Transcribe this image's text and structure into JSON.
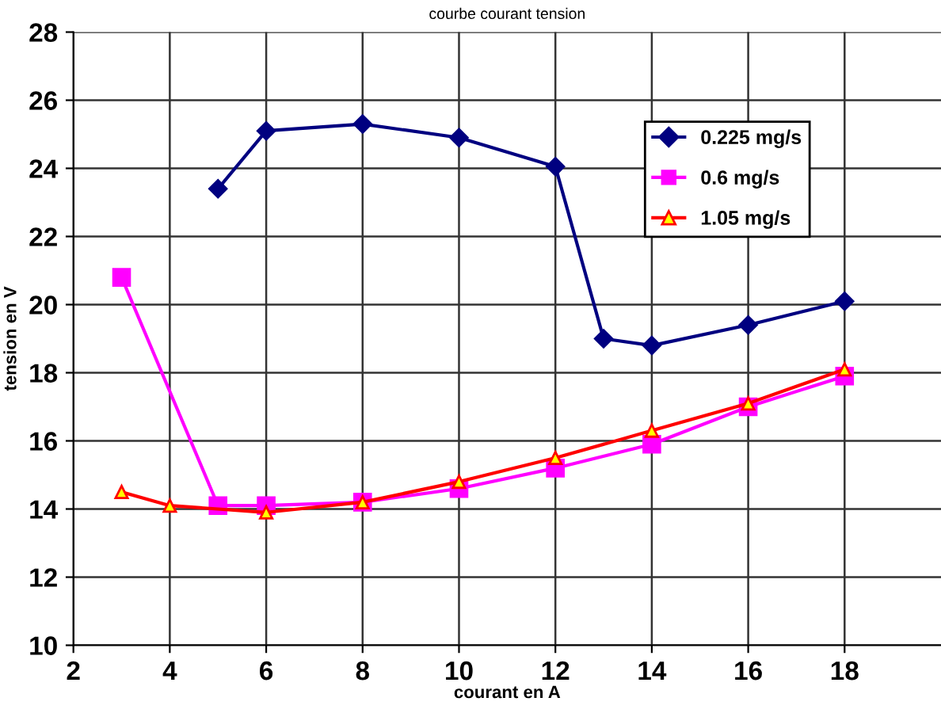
{
  "chart_data": {
    "type": "line",
    "title": "courbe courant tension",
    "xlabel": "courant en A",
    "ylabel": "tension en V",
    "xlim": [
      2,
      20
    ],
    "xticks": [
      2,
      4,
      6,
      8,
      10,
      12,
      14,
      16,
      18
    ],
    "ylim": [
      10,
      28
    ],
    "yticks": [
      10,
      12,
      14,
      16,
      18,
      20,
      22,
      24,
      26,
      28
    ],
    "grid": true,
    "legend": "top right",
    "line_style": "solid",
    "series": [
      {
        "name": "0.225 mg/s",
        "color": "#000080",
        "marker": "diamond",
        "x": [
          5,
          6,
          8,
          10,
          12,
          13,
          14,
          16,
          18
        ],
        "values": [
          23.4,
          25.1,
          25.3,
          24.9,
          24.05,
          19.0,
          18.8,
          19.4,
          20.1
        ]
      },
      {
        "name": "0.6 mg/s",
        "color": "#ff00ff",
        "marker": "square",
        "x": [
          3,
          5,
          6,
          8,
          10,
          12,
          14,
          16,
          18
        ],
        "values": [
          20.8,
          14.1,
          14.1,
          14.2,
          14.6,
          15.2,
          15.9,
          17.0,
          17.9
        ]
      },
      {
        "name": "1.05 mg/s",
        "color": "#ff0000",
        "marker": "triangle",
        "x": [
          3,
          4,
          6,
          8,
          10,
          12,
          14,
          16,
          18
        ],
        "values": [
          14.5,
          14.1,
          13.9,
          14.2,
          14.8,
          15.5,
          16.3,
          17.1,
          18.1
        ]
      }
    ]
  }
}
